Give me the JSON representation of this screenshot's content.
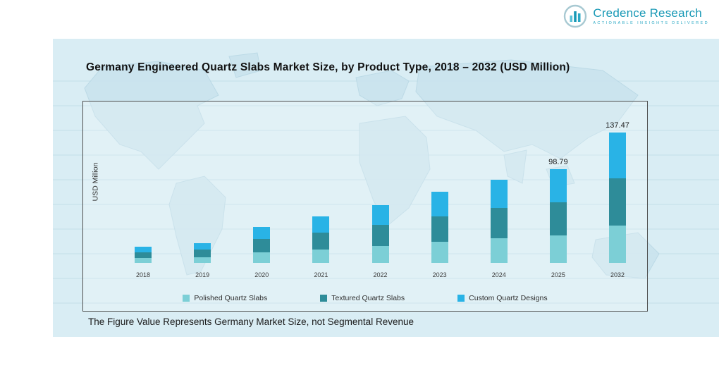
{
  "logo": {
    "name": "Credence Research",
    "tagline": "Actionable Insights Delivered"
  },
  "title": "Germany Engineered Quartz Slabs Market Size, by Product Type, 2018 – 2032 (USD Million)",
  "footnote": "The Figure Value Represents Germany Market Size, not Segmental Revenue",
  "colors": {
    "panel_bg": "#d9edf4",
    "accent_teal": "#1798b5",
    "polished": "#7ccfd6",
    "textured": "#2e8c99",
    "custom": "#29b3e6"
  },
  "chart_data": {
    "type": "bar",
    "stacked": true,
    "title": "Germany Engineered Quartz Slabs Market Size, by Product Type, 2018 – 2032 (USD Million)",
    "xlabel": "",
    "ylabel": "USD Million",
    "ylim": [
      0,
      160
    ],
    "grid": "faint-horizontal",
    "legend_position": "bottom",
    "categories": [
      "2018",
      "2019",
      "2020",
      "2021",
      "2022",
      "2023",
      "2024",
      "2025",
      "2032"
    ],
    "series": [
      {
        "name": "Polished Quartz Slabs",
        "color": "#7ccfd6",
        "values": [
          5,
          6,
          11,
          14,
          18,
          22,
          26,
          28.79,
          39.47
        ]
      },
      {
        "name": "Textured Quartz Slabs",
        "color": "#2e8c99",
        "values": [
          6,
          8,
          14,
          18,
          22,
          27,
          32,
          35,
          50
        ]
      },
      {
        "name": "Custom Quartz Designs",
        "color": "#29b3e6",
        "values": [
          6,
          7,
          13,
          17,
          21,
          26,
          30,
          35,
          48
        ]
      }
    ],
    "totals": [
      17,
      21,
      38,
      49,
      61,
      75,
      88,
      98.79,
      137.47
    ],
    "data_labels": [
      null,
      null,
      null,
      null,
      null,
      null,
      null,
      "98.79",
      "137.47"
    ]
  }
}
